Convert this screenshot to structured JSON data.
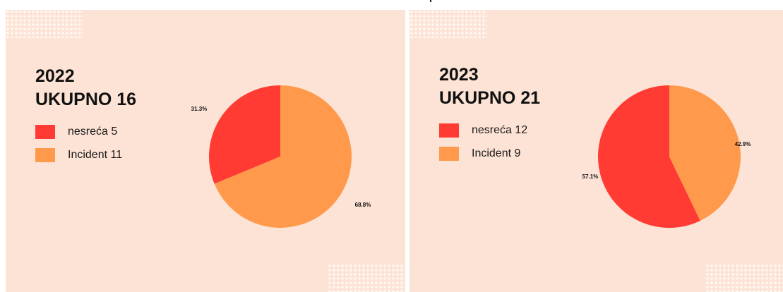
{
  "colors": {
    "background": "#fde3d5",
    "nesreca": "#ff3b33",
    "incident": "#ff9a4d"
  },
  "chart_data": [
    {
      "type": "pie",
      "title": "2022",
      "subtitle": "UKUPNO 16",
      "legend_position": "left",
      "slices": [
        {
          "label": "nesreća 5",
          "category": "nesreća",
          "value": 5,
          "percent_label": "31.3%",
          "color": "#ff3b33"
        },
        {
          "label": "Incident 11",
          "category": "Incident",
          "value": 11,
          "percent_label": "68.8%",
          "color": "#ff9a4d"
        }
      ]
    },
    {
      "type": "pie",
      "title": "2023",
      "subtitle": "UKUPNO 21",
      "legend_position": "left",
      "slices": [
        {
          "label": "nesreća 12",
          "category": "nesreća",
          "value": 12,
          "percent_label": "57.1%",
          "color": "#ff3b33"
        },
        {
          "label": "Incident 9",
          "category": "Incident",
          "value": 9,
          "percent_label": "42.9%",
          "color": "#ff9a4d"
        }
      ]
    }
  ]
}
